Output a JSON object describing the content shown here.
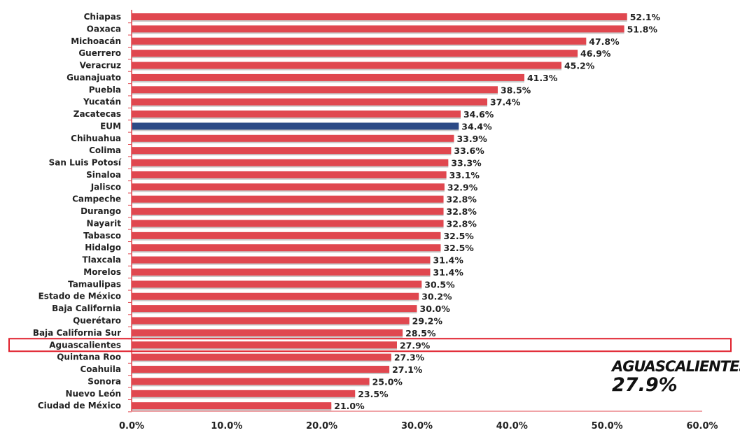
{
  "chart_data": {
    "type": "bar",
    "orientation": "horizontal",
    "title": "",
    "xlabel": "",
    "ylabel": "",
    "xlim": [
      0,
      60
    ],
    "x_ticks": [
      "0.0%",
      "10.0%",
      "20.0%",
      "30.0%",
      "40.0%",
      "50.0%",
      "60.0%"
    ],
    "categories": [
      "Chiapas",
      "Oaxaca",
      "Michoacán",
      "Guerrero",
      "Veracruz",
      "Guanajuato",
      "Puebla",
      "Yucatán",
      "Zacatecas",
      "EUM",
      "Chihuahua",
      "Colima",
      "San Luis Potosí",
      "Sinaloa",
      "Jalisco",
      "Campeche",
      "Durango",
      "Nayarit",
      "Tabasco",
      "Hidalgo",
      "Tlaxcala",
      "Morelos",
      "Tamaulipas",
      "Estado de México",
      "Baja California",
      "Querétaro",
      "Baja California Sur",
      "Aguascalientes",
      "Quintana Roo",
      "Coahuila",
      "Sonora",
      "Nuevo León",
      "Ciudad de México"
    ],
    "values": [
      52.1,
      51.8,
      47.8,
      46.9,
      45.2,
      41.3,
      38.5,
      37.4,
      34.6,
      34.4,
      33.9,
      33.6,
      33.3,
      33.1,
      32.9,
      32.8,
      32.8,
      32.8,
      32.5,
      32.5,
      31.4,
      31.4,
      30.5,
      30.2,
      30.0,
      29.2,
      28.5,
      27.9,
      27.3,
      27.1,
      25.0,
      23.5,
      21.0
    ],
    "value_labels": [
      "52.1%",
      "51.8%",
      "47.8%",
      "46.9%",
      "45.2%",
      "41.3%",
      "38.5%",
      "37.4%",
      "34.6%",
      "34.4%",
      "33.9%",
      "33.6%",
      "33.3%",
      "33.1%",
      "32.9%",
      "32.8%",
      "32.8%",
      "32.8%",
      "32.5%",
      "32.5%",
      "31.4%",
      "31.4%",
      "30.5%",
      "30.2%",
      "30.0%",
      "29.2%",
      "28.5%",
      "27.9%",
      "27.3%",
      "27.1%",
      "25.0%",
      "23.5%",
      "21.0%"
    ],
    "highlight_national": "EUM",
    "highlight_boxed": "Aguascalientes",
    "colors": {
      "bar": "#e0474f",
      "national": "#2c4a86",
      "highlight_box": "#e0202c",
      "axis": "#e0474f"
    },
    "annotation": {
      "name": "Aguascalientes",
      "value": "27.9%"
    }
  }
}
